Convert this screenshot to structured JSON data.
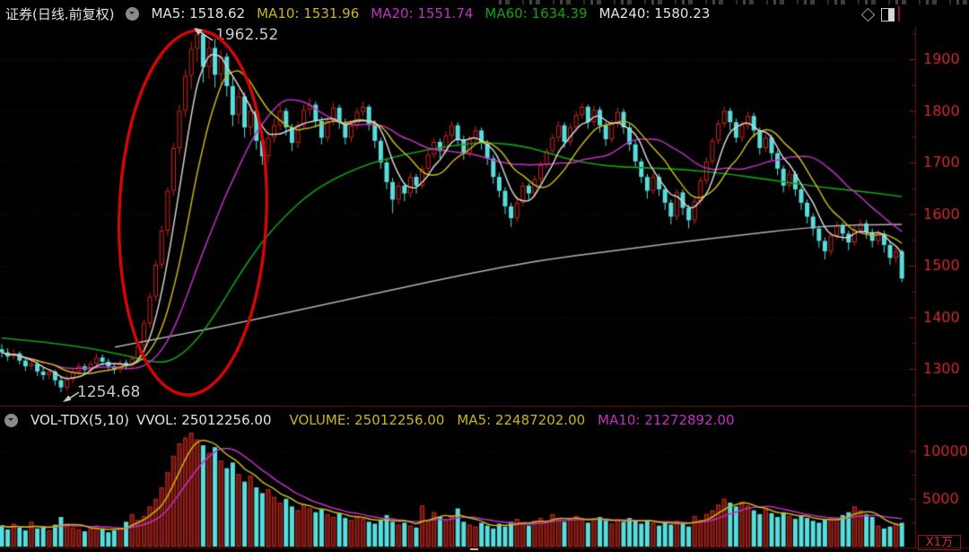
{
  "colors": {
    "header_white": "#e2e2e2",
    "yellow": "#c9b814",
    "magenta": "#c231c2",
    "green": "#14a014",
    "ma5_white": "#d4d4d4",
    "ma240_gray": "#b2b2b2",
    "up_red": "#d0261a",
    "up_vol_fill": "#571511",
    "down_cyan": "#58dcdc",
    "axis_text": "#cf2f2f",
    "axis_line": "#6e1414",
    "tick": "#8d1a1a",
    "grid": "#4c0c0c",
    "divider": "#6b1212",
    "ellipse": "#d40404",
    "annotation": "#c8c8c8"
  },
  "header": {
    "title": "证券(日线.前复权)",
    "indicators": [
      {
        "label": "MA5:",
        "value": "1518.62",
        "color": "header_white"
      },
      {
        "label": "MA10:",
        "value": "1531.96",
        "color": "yellow"
      },
      {
        "label": "MA20:",
        "value": "1551.74",
        "color": "magenta"
      },
      {
        "label": "MA60:",
        "value": "1634.39",
        "color": "green"
      },
      {
        "label": "MA240:",
        "value": "1580.23",
        "color": "header_white"
      }
    ]
  },
  "volume_header": {
    "name": "VOL-TDX(5,10)",
    "indicators": [
      {
        "label": "VVOL:",
        "value": "25012256.00",
        "color": "header_white"
      },
      {
        "label": "VOLUME:",
        "value": "25012256.00",
        "color": "yellow"
      },
      {
        "label": "MA5:",
        "value": "22487202.00",
        "color": "yellow"
      },
      {
        "label": "MA10:",
        "value": "21272892.00",
        "color": "magenta"
      }
    ]
  },
  "annotations": {
    "high_label": "1962.52",
    "low_label": "1254.68"
  },
  "axes": {
    "price_ticks": [
      1900,
      1800,
      1700,
      1600,
      1500,
      1400,
      1300
    ],
    "price_minor_step": 50,
    "volume_tick_labels": [
      10000,
      5000
    ],
    "volume_minor_step": 2500,
    "volume_unit": "X1万"
  },
  "chart_data": {
    "type": "candlestick+volume",
    "title": "证券 daily chart, forward-adjusted",
    "high_annotation": 1962.52,
    "low_annotation": 1254.68,
    "price_range_shown": [
      1254.68,
      1962.52
    ],
    "volume_axis_max": 10000,
    "candles": [
      [
        1338,
        1348,
        1322,
        1332
      ],
      [
        1332,
        1340,
        1315,
        1324
      ],
      [
        1324,
        1338,
        1318,
        1330
      ],
      [
        1330,
        1334,
        1308,
        1316
      ],
      [
        1316,
        1322,
        1296,
        1305
      ],
      [
        1305,
        1318,
        1298,
        1310
      ],
      [
        1310,
        1314,
        1286,
        1295
      ],
      [
        1295,
        1302,
        1278,
        1288
      ],
      [
        1288,
        1300,
        1280,
        1295
      ],
      [
        1295,
        1298,
        1268,
        1278
      ],
      [
        1278,
        1284,
        1254.68,
        1264
      ],
      [
        1264,
        1288,
        1258,
        1280
      ],
      [
        1280,
        1302,
        1272,
        1295
      ],
      [
        1295,
        1312,
        1288,
        1305
      ],
      [
        1305,
        1310,
        1290,
        1298
      ],
      [
        1298,
        1316,
        1292,
        1310
      ],
      [
        1310,
        1330,
        1304,
        1322
      ],
      [
        1322,
        1328,
        1306,
        1314
      ],
      [
        1314,
        1320,
        1296,
        1305
      ],
      [
        1305,
        1312,
        1290,
        1298
      ],
      [
        1298,
        1318,
        1292,
        1312
      ],
      [
        1312,
        1318,
        1298,
        1306
      ],
      [
        1306,
        1326,
        1300,
        1320
      ],
      [
        1320,
        1352,
        1314,
        1345
      ],
      [
        1345,
        1395,
        1338,
        1388
      ],
      [
        1388,
        1448,
        1380,
        1440
      ],
      [
        1440,
        1510,
        1432,
        1502
      ],
      [
        1502,
        1578,
        1494,
        1568
      ],
      [
        1568,
        1652,
        1558,
        1645
      ],
      [
        1645,
        1738,
        1635,
        1728
      ],
      [
        1728,
        1812,
        1715,
        1800
      ],
      [
        1800,
        1880,
        1788,
        1868
      ],
      [
        1868,
        1935,
        1842,
        1920
      ],
      [
        1920,
        1962.52,
        1895,
        1948
      ],
      [
        1948,
        1955,
        1855,
        1885
      ],
      [
        1885,
        1938,
        1862,
        1922
      ],
      [
        1922,
        1940,
        1845,
        1870
      ],
      [
        1870,
        1918,
        1850,
        1905
      ],
      [
        1905,
        1912,
        1828,
        1848
      ],
      [
        1848,
        1865,
        1770,
        1792
      ],
      [
        1792,
        1842,
        1775,
        1828
      ],
      [
        1828,
        1835,
        1748,
        1768
      ],
      [
        1768,
        1815,
        1752,
        1800
      ],
      [
        1800,
        1808,
        1725,
        1742
      ],
      [
        1742,
        1762,
        1695,
        1712
      ],
      [
        1712,
        1758,
        1700,
        1748
      ],
      [
        1748,
        1785,
        1738,
        1772
      ],
      [
        1772,
        1812,
        1762,
        1800
      ],
      [
        1800,
        1806,
        1752,
        1768
      ],
      [
        1768,
        1775,
        1722,
        1738
      ],
      [
        1738,
        1780,
        1728,
        1772
      ],
      [
        1772,
        1812,
        1765,
        1802
      ],
      [
        1802,
        1825,
        1790,
        1812
      ],
      [
        1812,
        1818,
        1768,
        1780
      ],
      [
        1780,
        1788,
        1735,
        1748
      ],
      [
        1748,
        1788,
        1740,
        1780
      ],
      [
        1780,
        1815,
        1772,
        1806
      ],
      [
        1806,
        1812,
        1765,
        1778
      ],
      [
        1778,
        1785,
        1735,
        1748
      ],
      [
        1748,
        1780,
        1740,
        1772
      ],
      [
        1772,
        1806,
        1764,
        1798
      ],
      [
        1798,
        1818,
        1790,
        1808
      ],
      [
        1808,
        1812,
        1762,
        1775
      ],
      [
        1775,
        1782,
        1728,
        1742
      ],
      [
        1742,
        1748,
        1688,
        1700
      ],
      [
        1700,
        1708,
        1648,
        1662
      ],
      [
        1662,
        1670,
        1602,
        1628
      ],
      [
        1628,
        1662,
        1618,
        1655
      ],
      [
        1655,
        1660,
        1625,
        1640
      ],
      [
        1640,
        1680,
        1632,
        1672
      ],
      [
        1672,
        1678,
        1640,
        1655
      ],
      [
        1655,
        1695,
        1648,
        1688
      ],
      [
        1688,
        1722,
        1680,
        1715
      ],
      [
        1715,
        1748,
        1708,
        1740
      ],
      [
        1740,
        1746,
        1708,
        1722
      ],
      [
        1722,
        1760,
        1715,
        1752
      ],
      [
        1752,
        1780,
        1744,
        1772
      ],
      [
        1772,
        1778,
        1732,
        1745
      ],
      [
        1745,
        1752,
        1705,
        1718
      ],
      [
        1718,
        1752,
        1710,
        1745
      ],
      [
        1745,
        1770,
        1738,
        1762
      ],
      [
        1762,
        1768,
        1725,
        1738
      ],
      [
        1738,
        1744,
        1695,
        1708
      ],
      [
        1708,
        1715,
        1658,
        1672
      ],
      [
        1672,
        1680,
        1632,
        1645
      ],
      [
        1645,
        1652,
        1600,
        1615
      ],
      [
        1615,
        1622,
        1575,
        1592
      ],
      [
        1592,
        1630,
        1585,
        1622
      ],
      [
        1622,
        1662,
        1615,
        1655
      ],
      [
        1655,
        1660,
        1625,
        1640
      ],
      [
        1640,
        1675,
        1632,
        1668
      ],
      [
        1668,
        1702,
        1660,
        1695
      ],
      [
        1695,
        1728,
        1688,
        1722
      ],
      [
        1722,
        1755,
        1715,
        1748
      ],
      [
        1748,
        1780,
        1740,
        1772
      ],
      [
        1772,
        1778,
        1728,
        1740
      ],
      [
        1740,
        1775,
        1732,
        1768
      ],
      [
        1768,
        1800,
        1760,
        1792
      ],
      [
        1792,
        1815,
        1785,
        1808
      ],
      [
        1808,
        1812,
        1765,
        1778
      ],
      [
        1778,
        1810,
        1770,
        1802
      ],
      [
        1802,
        1808,
        1758,
        1772
      ],
      [
        1772,
        1778,
        1732,
        1745
      ],
      [
        1745,
        1782,
        1738,
        1775
      ],
      [
        1775,
        1806,
        1768,
        1798
      ],
      [
        1798,
        1804,
        1755,
        1768
      ],
      [
        1768,
        1775,
        1722,
        1735
      ],
      [
        1735,
        1742,
        1690,
        1702
      ],
      [
        1702,
        1708,
        1660,
        1672
      ],
      [
        1672,
        1678,
        1630,
        1645
      ],
      [
        1645,
        1680,
        1638,
        1672
      ],
      [
        1672,
        1678,
        1635,
        1648
      ],
      [
        1648,
        1655,
        1608,
        1622
      ],
      [
        1622,
        1628,
        1580,
        1595
      ],
      [
        1595,
        1648,
        1588,
        1642
      ],
      [
        1642,
        1648,
        1598,
        1612
      ],
      [
        1612,
        1618,
        1572,
        1588
      ],
      [
        1588,
        1632,
        1580,
        1625
      ],
      [
        1625,
        1672,
        1618,
        1665
      ],
      [
        1665,
        1710,
        1658,
        1702
      ],
      [
        1702,
        1748,
        1695,
        1742
      ],
      [
        1742,
        1782,
        1735,
        1775
      ],
      [
        1775,
        1808,
        1768,
        1800
      ],
      [
        1800,
        1806,
        1762,
        1778
      ],
      [
        1778,
        1785,
        1738,
        1748
      ],
      [
        1748,
        1780,
        1740,
        1772
      ],
      [
        1772,
        1798,
        1764,
        1790
      ],
      [
        1790,
        1796,
        1748,
        1762
      ],
      [
        1762,
        1768,
        1715,
        1728
      ],
      [
        1728,
        1755,
        1720,
        1748
      ],
      [
        1748,
        1754,
        1705,
        1718
      ],
      [
        1718,
        1724,
        1675,
        1688
      ],
      [
        1688,
        1694,
        1642,
        1655
      ],
      [
        1655,
        1685,
        1648,
        1678
      ],
      [
        1678,
        1684,
        1635,
        1648
      ],
      [
        1648,
        1654,
        1608,
        1622
      ],
      [
        1622,
        1628,
        1582,
        1595
      ],
      [
        1595,
        1602,
        1558,
        1572
      ],
      [
        1572,
        1578,
        1535,
        1548
      ],
      [
        1548,
        1555,
        1512,
        1528
      ],
      [
        1528,
        1565,
        1520,
        1558
      ],
      [
        1558,
        1585,
        1550,
        1578
      ],
      [
        1578,
        1584,
        1548,
        1562
      ],
      [
        1562,
        1568,
        1530,
        1545
      ],
      [
        1545,
        1578,
        1538,
        1570
      ],
      [
        1570,
        1590,
        1562,
        1582
      ],
      [
        1582,
        1588,
        1552,
        1565
      ],
      [
        1565,
        1572,
        1535,
        1548
      ],
      [
        1548,
        1570,
        1540,
        1562
      ],
      [
        1562,
        1568,
        1525,
        1540
      ],
      [
        1540,
        1546,
        1502,
        1515
      ],
      [
        1515,
        1535,
        1505,
        1528
      ],
      [
        1528,
        1532,
        1468,
        1475
      ]
    ],
    "volumes": [
      2200,
      1800,
      2400,
      2000,
      1700,
      2600,
      1900,
      2100,
      1700,
      2300,
      3100,
      2400,
      2000,
      1800,
      1600,
      1900,
      2200,
      1800,
      1500,
      1700,
      2000,
      2600,
      3400,
      2800,
      3200,
      4200,
      5000,
      6200,
      7800,
      9500,
      10800,
      11400,
      11900,
      11200,
      10600,
      9800,
      10400,
      9000,
      8200,
      8800,
      7600,
      6800,
      7400,
      6200,
      5600,
      6000,
      5200,
      4600,
      5000,
      4200,
      3800,
      4400,
      4000,
      3600,
      3900,
      3400,
      3100,
      3500,
      3000,
      2800,
      3200,
      2900,
      2600,
      2400,
      2800,
      3300,
      2600,
      2300,
      2500,
      2200,
      2000,
      4300,
      2700,
      3600,
      3100,
      2800,
      3300,
      4000,
      2600,
      2300,
      2100,
      2500,
      2200,
      1900,
      2400,
      2100,
      2600,
      2900,
      2500,
      2200,
      2700,
      3000,
      2700,
      3400,
      3000,
      2600,
      2900,
      3200,
      2800,
      2500,
      2900,
      3100,
      2700,
      2400,
      2800,
      2600,
      3000,
      2700,
      2400,
      2800,
      2500,
      2200,
      2600,
      2300,
      2700,
      2400,
      2100,
      3200,
      2800,
      3400,
      3800,
      4400,
      5000,
      4600,
      4200,
      4700,
      4300,
      3800,
      3400,
      3900,
      3500,
      3100,
      3600,
      3200,
      2900,
      3300,
      3000,
      2700,
      2500,
      2800,
      3100,
      2900,
      3300,
      3600,
      4200,
      3800,
      3400,
      3100,
      2200,
      1900,
      2100,
      2400,
      2500
    ],
    "ma60_points": [
      [
        2,
        1360
      ],
      [
        50,
        1352
      ],
      [
        100,
        1340
      ],
      [
        140,
        1326
      ],
      [
        165,
        1315
      ],
      [
        185,
        1312
      ],
      [
        205,
        1330
      ],
      [
        225,
        1368
      ],
      [
        245,
        1420
      ],
      [
        265,
        1478
      ],
      [
        290,
        1542
      ],
      [
        315,
        1592
      ],
      [
        350,
        1648
      ],
      [
        400,
        1692
      ],
      [
        450,
        1716
      ],
      [
        500,
        1732
      ],
      [
        545,
        1740
      ],
      [
        590,
        1730
      ],
      [
        630,
        1707
      ],
      [
        670,
        1694
      ],
      [
        710,
        1690
      ],
      [
        760,
        1687
      ],
      [
        810,
        1678
      ],
      [
        860,
        1666
      ],
      [
        910,
        1653
      ],
      [
        960,
        1644
      ],
      [
        1005,
        1634
      ]
    ],
    "ma240_points": [
      [
        128,
        1342
      ],
      [
        200,
        1366
      ],
      [
        280,
        1394
      ],
      [
        360,
        1424
      ],
      [
        440,
        1454
      ],
      [
        520,
        1484
      ],
      [
        600,
        1510
      ],
      [
        680,
        1528
      ],
      [
        760,
        1546
      ],
      [
        830,
        1560
      ],
      [
        890,
        1572
      ],
      [
        935,
        1578
      ],
      [
        1005,
        1580
      ]
    ],
    "ma_periods_price": [
      5,
      10,
      20
    ],
    "ma_periods_volume": [
      5,
      10
    ],
    "legend_position": "top",
    "grid": "dotted-horizontal"
  }
}
